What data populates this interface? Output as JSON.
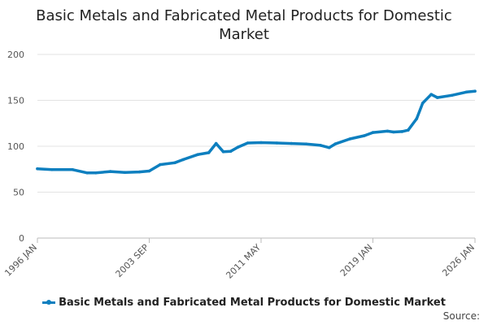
{
  "chart_data": {
    "type": "line",
    "title_lines": [
      "Basic Metals and Fabricated Metal Products for Domestic",
      "Market"
    ],
    "ylim": [
      0,
      200
    ],
    "yticks": [
      "0",
      "50",
      "100",
      "150",
      "200"
    ],
    "xticks": [
      "1996 JAN",
      "2003 SEP",
      "2011 MAY",
      "2019 JAN",
      "2026 JAN"
    ],
    "grid": "horizontal",
    "legend_position": "bottom",
    "series": [
      {
        "name": "Basic Metals and Fabricated Metal Products for Domestic Market",
        "color": "#0d7fbf",
        "x": [
          "1996-01",
          "1997-01",
          "1998-06",
          "1999-06",
          "2000-01",
          "2001-01",
          "2002-01",
          "2003-01",
          "2003-09",
          "2004-06",
          "2005-06",
          "2006-01",
          "2007-01",
          "2007-10",
          "2008-04",
          "2008-10",
          "2009-04",
          "2009-10",
          "2010-06",
          "2011-05",
          "2012-06",
          "2013-06",
          "2014-06",
          "2015-06",
          "2016-01",
          "2016-06",
          "2017-06",
          "2018-06",
          "2019-01",
          "2020-01",
          "2020-06",
          "2021-01",
          "2021-06",
          "2022-01",
          "2022-06",
          "2023-01",
          "2023-06",
          "2024-06",
          "2025-06",
          "2026-01"
        ],
        "values": [
          75.5,
          74.5,
          74.5,
          71,
          71,
          72.5,
          71.5,
          72,
          73,
          80,
          82,
          85.5,
          91,
          93,
          103,
          94,
          94.5,
          99,
          103.5,
          104,
          103.5,
          103,
          102.5,
          101,
          98.5,
          102.5,
          108,
          111.5,
          115,
          116.5,
          115.5,
          116,
          117.5,
          130,
          147,
          156.5,
          153,
          155.5,
          159,
          160
        ]
      }
    ]
  },
  "legend": {
    "label": "Basic Metals and Fabricated Metal Products for Domestic Market"
  },
  "source": {
    "label": "Source:"
  }
}
